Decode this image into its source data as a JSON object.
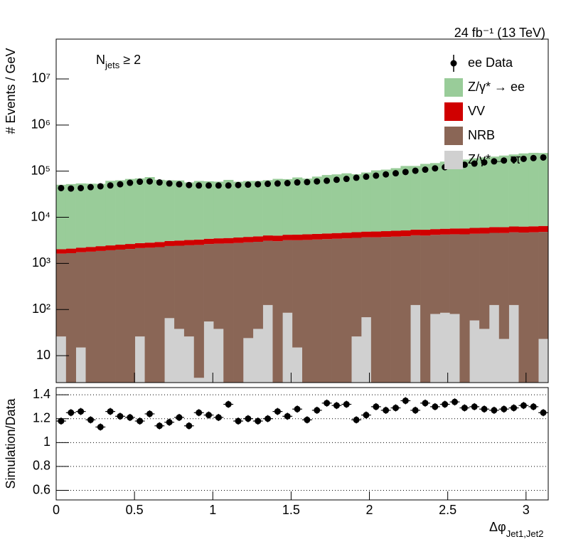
{
  "chart_data": [
    {
      "type": "histogram",
      "stacked": true,
      "log_y": true,
      "title": "24 fb⁻¹ (13 TeV)",
      "annotation": {
        "base": "N",
        "subscript": "jets",
        "text": " ≥ 2"
      },
      "y_label": "# Events / GeV",
      "xlim": [
        0,
        3.1416
      ],
      "ylim": [
        2.6,
        73000000
      ],
      "yticks": [
        10,
        {
          "value": 100,
          "label": "10²"
        },
        {
          "value": 1000,
          "label": "10³"
        },
        {
          "value": 10000,
          "label": "10⁴"
        },
        {
          "value": 100000,
          "label": "10⁵"
        },
        {
          "value": 1000000,
          "label": "10⁶"
        },
        {
          "value": 10000000,
          "label": "10⁷"
        }
      ],
      "legend": "top-right",
      "bins": [
        0,
        0.0628,
        0.1257,
        0.1885,
        0.2513,
        0.3142,
        0.377,
        0.4398,
        0.5027,
        0.5655,
        0.6283,
        0.6912,
        0.754,
        0.8168,
        0.8796,
        0.9425,
        1.0053,
        1.0681,
        1.131,
        1.1938,
        1.2566,
        1.3195,
        1.3823,
        1.4451,
        1.508,
        1.5708,
        1.6336,
        1.6965,
        1.7593,
        1.8221,
        1.885,
        1.9478,
        2.0106,
        2.0735,
        2.1363,
        2.1991,
        2.2619,
        2.3248,
        2.3876,
        2.4504,
        2.5133,
        2.5761,
        2.6389,
        2.7018,
        2.7646,
        2.8274,
        2.8903,
        2.9531,
        3.0159,
        3.0788,
        3.1416
      ],
      "series": [
        {
          "name": "ee Data",
          "marker": "points",
          "color": "#000000",
          "values": [
            43000,
            42000,
            43000,
            45000,
            47000,
            49000,
            52000,
            56000,
            59000,
            60000,
            57000,
            54000,
            52000,
            50000,
            49000,
            49000,
            49000,
            49000,
            50000,
            51000,
            52000,
            53000,
            54000,
            55000,
            57000,
            58000,
            60000,
            62000,
            65000,
            68000,
            72000,
            76000,
            80000,
            85000,
            90000,
            96000,
            102000,
            108000,
            115000,
            122000,
            130000,
            138000,
            146000,
            155000,
            163000,
            170000,
            178000,
            185000,
            192000,
            198000
          ]
        },
        {
          "name": "Z/γ* → ee",
          "color": "#99cc99",
          "values": [
            48700,
            50400,
            52000,
            51300,
            50700,
            59300,
            60900,
            65100,
            66900,
            71600,
            62100,
            60200,
            59800,
            53800,
            58000,
            56900,
            55800,
            61100,
            55400,
            57500,
            57500,
            59700,
            64000,
            63000,
            68800,
            64700,
            71800,
            78000,
            80600,
            85100,
            80900,
            88700,
            99100,
            102900,
            111000,
            124400,
            124300,
            138300,
            144000,
            155500,
            168600,
            172300,
            184000,
            192500,
            201000,
            211500,
            223400,
            236100,
            243200,
            241000
          ]
        },
        {
          "name": "VV",
          "color": "#d00000",
          "values": [
            400,
            426,
            452,
            478,
            504,
            530,
            556,
            582,
            608,
            634,
            660,
            686,
            712,
            738,
            764,
            790,
            816,
            842,
            868,
            894,
            920,
            946,
            972,
            998,
            1024,
            1050,
            1076,
            1102,
            1128,
            1154,
            1180,
            1206,
            1232,
            1258,
            1284,
            1310,
            1336,
            1362,
            1388,
            1414,
            1440,
            1466,
            1492,
            1518,
            1544,
            1570,
            1596,
            1622,
            1648,
            1674
          ]
        },
        {
          "name": "NRB",
          "color": "#8a6656",
          "values": [
            1600,
            1665,
            1730,
            1795,
            1860,
            1925,
            1990,
            2055,
            2120,
            2185,
            2250,
            2315,
            2380,
            2445,
            2510,
            2575,
            2640,
            2705,
            2770,
            2835,
            2900,
            2965,
            3030,
            3095,
            3160,
            3225,
            3290,
            3355,
            3420,
            3485,
            3550,
            3615,
            3680,
            3745,
            3810,
            3875,
            3940,
            4005,
            4070,
            4135,
            4200,
            4265,
            4330,
            4395,
            4460,
            4525,
            4590,
            4655,
            4720,
            4785
          ]
        },
        {
          "name": "Z/γ* → ττ",
          "color": "#d0d0d0",
          "values": [
            26,
            0,
            15,
            0,
            0,
            0,
            0,
            0,
            26,
            0,
            0,
            65,
            38,
            26,
            3.3,
            55,
            38,
            0,
            0,
            24,
            38,
            125,
            0,
            85,
            15,
            0,
            0,
            0,
            0,
            0,
            26,
            68,
            0,
            0,
            0,
            0,
            125,
            0,
            80,
            85,
            80,
            0,
            58,
            38,
            125,
            23,
            125,
            0,
            0,
            23
          ]
        }
      ]
    },
    {
      "type": "scatter",
      "y_label": "Simulation/Data",
      "x_label": {
        "base": "Δφ",
        "subscript": "Jet1,Jet2"
      },
      "ylim": [
        0.52,
        1.46
      ],
      "yticks": [
        0.6,
        0.8,
        1,
        1.2,
        1.4
      ],
      "xticks": [
        0,
        0.5,
        1,
        1.5,
        2,
        2.5,
        3
      ],
      "grid": true,
      "color": "#000000",
      "values": [
        1.18,
        1.25,
        1.26,
        1.19,
        1.13,
        1.26,
        1.22,
        1.21,
        1.18,
        1.24,
        1.14,
        1.17,
        1.21,
        1.14,
        1.25,
        1.23,
        1.21,
        1.32,
        1.18,
        1.2,
        1.18,
        1.2,
        1.26,
        1.22,
        1.28,
        1.19,
        1.27,
        1.33,
        1.31,
        1.32,
        1.19,
        1.23,
        1.3,
        1.27,
        1.29,
        1.35,
        1.27,
        1.33,
        1.3,
        1.32,
        1.34,
        1.29,
        1.3,
        1.28,
        1.27,
        1.28,
        1.29,
        1.31,
        1.3,
        1.25
      ],
      "errors": [
        0.03,
        0.03,
        0.03,
        0.03,
        0.03,
        0.03,
        0.03,
        0.03,
        0.03,
        0.03,
        0.03,
        0.03,
        0.03,
        0.03,
        0.03,
        0.03,
        0.03,
        0.03,
        0.03,
        0.03,
        0.03,
        0.03,
        0.03,
        0.03,
        0.03,
        0.03,
        0.03,
        0.03,
        0.03,
        0.03,
        0.03,
        0.03,
        0.03,
        0.03,
        0.03,
        0.03,
        0.03,
        0.03,
        0.03,
        0.03,
        0.03,
        0.03,
        0.03,
        0.03,
        0.03,
        0.03,
        0.03,
        0.03,
        0.03,
        0.03
      ]
    }
  ]
}
